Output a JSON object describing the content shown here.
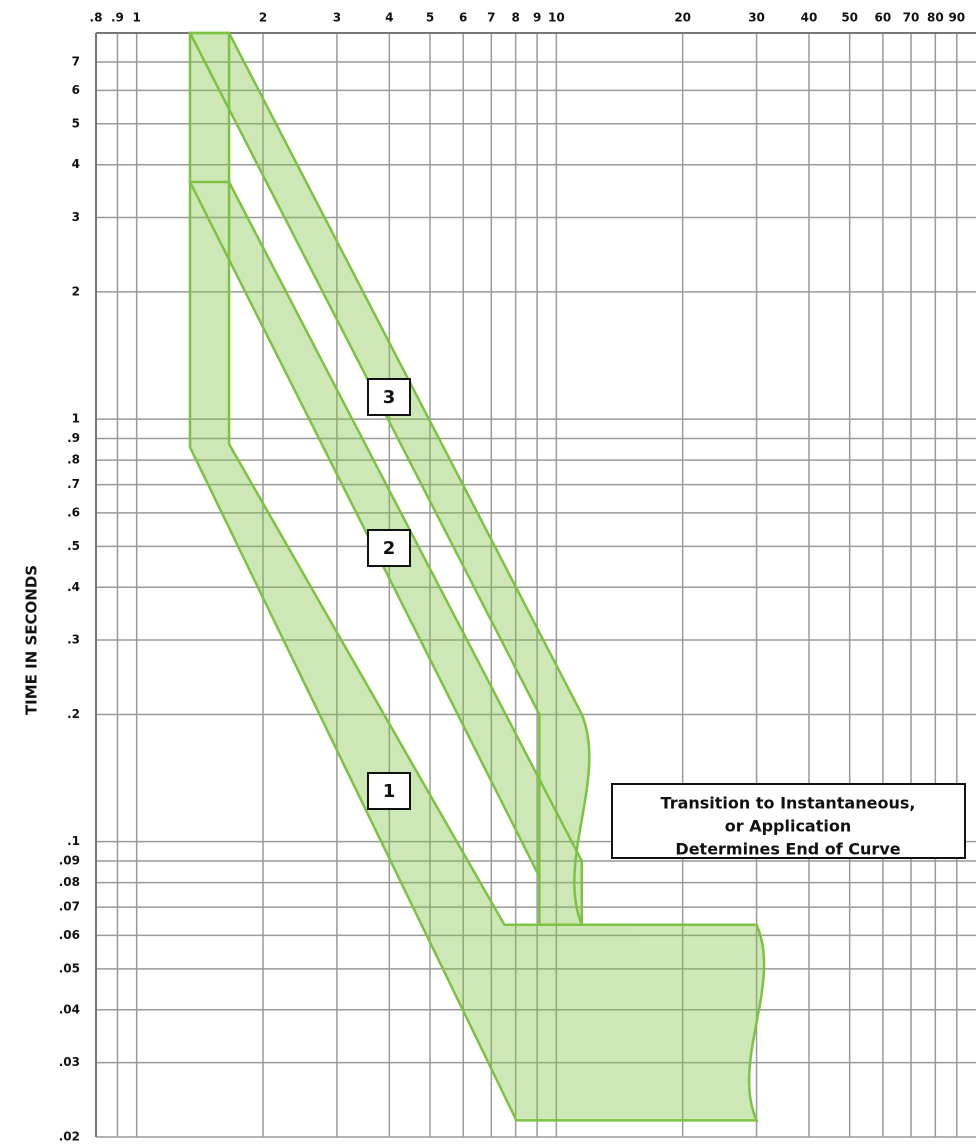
{
  "chart_data": {
    "type": "area",
    "y_label": "TIME IN SECONDS",
    "log_x": true,
    "log_y": true,
    "grid": true,
    "xlim": [
      0.8,
      100
    ],
    "ylim": [
      0.02,
      8.2
    ],
    "xticks": [
      {
        "value": 0.8,
        "label": ".8"
      },
      {
        "value": 0.9,
        "label": ".9"
      },
      1,
      2,
      3,
      4,
      5,
      6,
      7,
      8,
      9,
      10,
      20,
      30,
      40,
      50,
      60,
      70,
      80,
      90
    ],
    "yticks": [
      {
        "value": 0.02,
        "label": ".02"
      },
      {
        "value": 0.03,
        "label": ".03"
      },
      {
        "value": 0.04,
        "label": ".04"
      },
      {
        "value": 0.05,
        "label": ".05"
      },
      {
        "value": 0.06,
        "label": ".06"
      },
      {
        "value": 0.07,
        "label": ".07"
      },
      {
        "value": 0.08,
        "label": ".08"
      },
      {
        "value": 0.09,
        "label": ".09"
      },
      {
        "value": 0.1,
        "label": ".1"
      },
      {
        "value": 0.2,
        "label": ".2"
      },
      {
        "value": 0.3,
        "label": ".3"
      },
      {
        "value": 0.4,
        "label": ".4"
      },
      {
        "value": 0.5,
        "label": ".5"
      },
      {
        "value": 0.6,
        "label": ".6"
      },
      {
        "value": 0.7,
        "label": ".7"
      },
      {
        "value": 0.8,
        "label": ".8"
      },
      {
        "value": 0.9,
        "label": ".9"
      },
      1,
      2,
      3,
      4,
      5,
      6,
      7
    ],
    "series": [
      {
        "name": "1",
        "color": "#7dc242",
        "x": [
          1.34,
          1.66,
          1.66,
          7.52,
          30,
          30,
          8.03,
          1.34
        ],
        "y": [
          8.2,
          8.2,
          0.873,
          0.0636,
          0.0636,
          0.0219,
          0.0219,
          0.858
        ]
      },
      {
        "name": "2",
        "color": "#7dc242",
        "x": [
          1.34,
          1.66,
          11.5,
          11.5,
          9.11,
          9.11
        ],
        "y": [
          3.64,
          3.64,
          0.09,
          0.0636,
          0.0636,
          0.0826
        ]
      },
      {
        "name": "3",
        "color": "#7dc242",
        "x": [
          1.34,
          1.66,
          11.5,
          11.5,
          9.11,
          9.11
        ],
        "y": [
          8.2,
          8.2,
          0.2,
          0.0636,
          0.0636,
          0.2
        ]
      }
    ],
    "annotation": [
      "Transition to Instantaneous,",
      "or Application",
      "Determines End of Curve"
    ]
  }
}
